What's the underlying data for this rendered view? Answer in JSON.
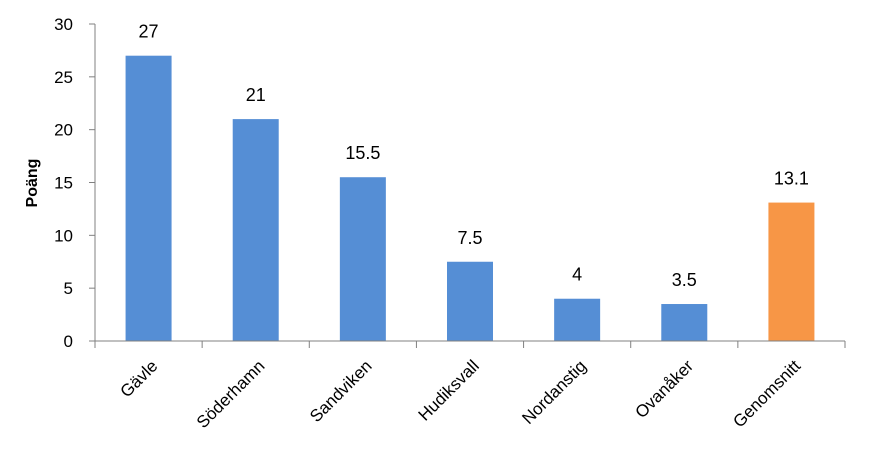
{
  "chart_data": {
    "type": "bar",
    "title": "",
    "xlabel": "",
    "ylabel": "Poäng",
    "ylim": [
      0,
      30
    ],
    "yticks": [
      0,
      5,
      10,
      15,
      20,
      25,
      30
    ],
    "grid": false,
    "legend": "none",
    "categories": [
      "Gävle",
      "Söderhamn",
      "Sandviken",
      "Hudiksvall",
      "Nordanstig",
      "Ovanåker",
      "Genomsnitt"
    ],
    "values": [
      27,
      21,
      15.5,
      7.5,
      4,
      3.5,
      13.1
    ],
    "data_labels": [
      "27",
      "21",
      "15.5",
      "7.5",
      "4",
      "3.5",
      "13.1"
    ],
    "colors": [
      "#558ED5",
      "#558ED5",
      "#558ED5",
      "#558ED5",
      "#558ED5",
      "#558ED5",
      "#F79646"
    ]
  }
}
